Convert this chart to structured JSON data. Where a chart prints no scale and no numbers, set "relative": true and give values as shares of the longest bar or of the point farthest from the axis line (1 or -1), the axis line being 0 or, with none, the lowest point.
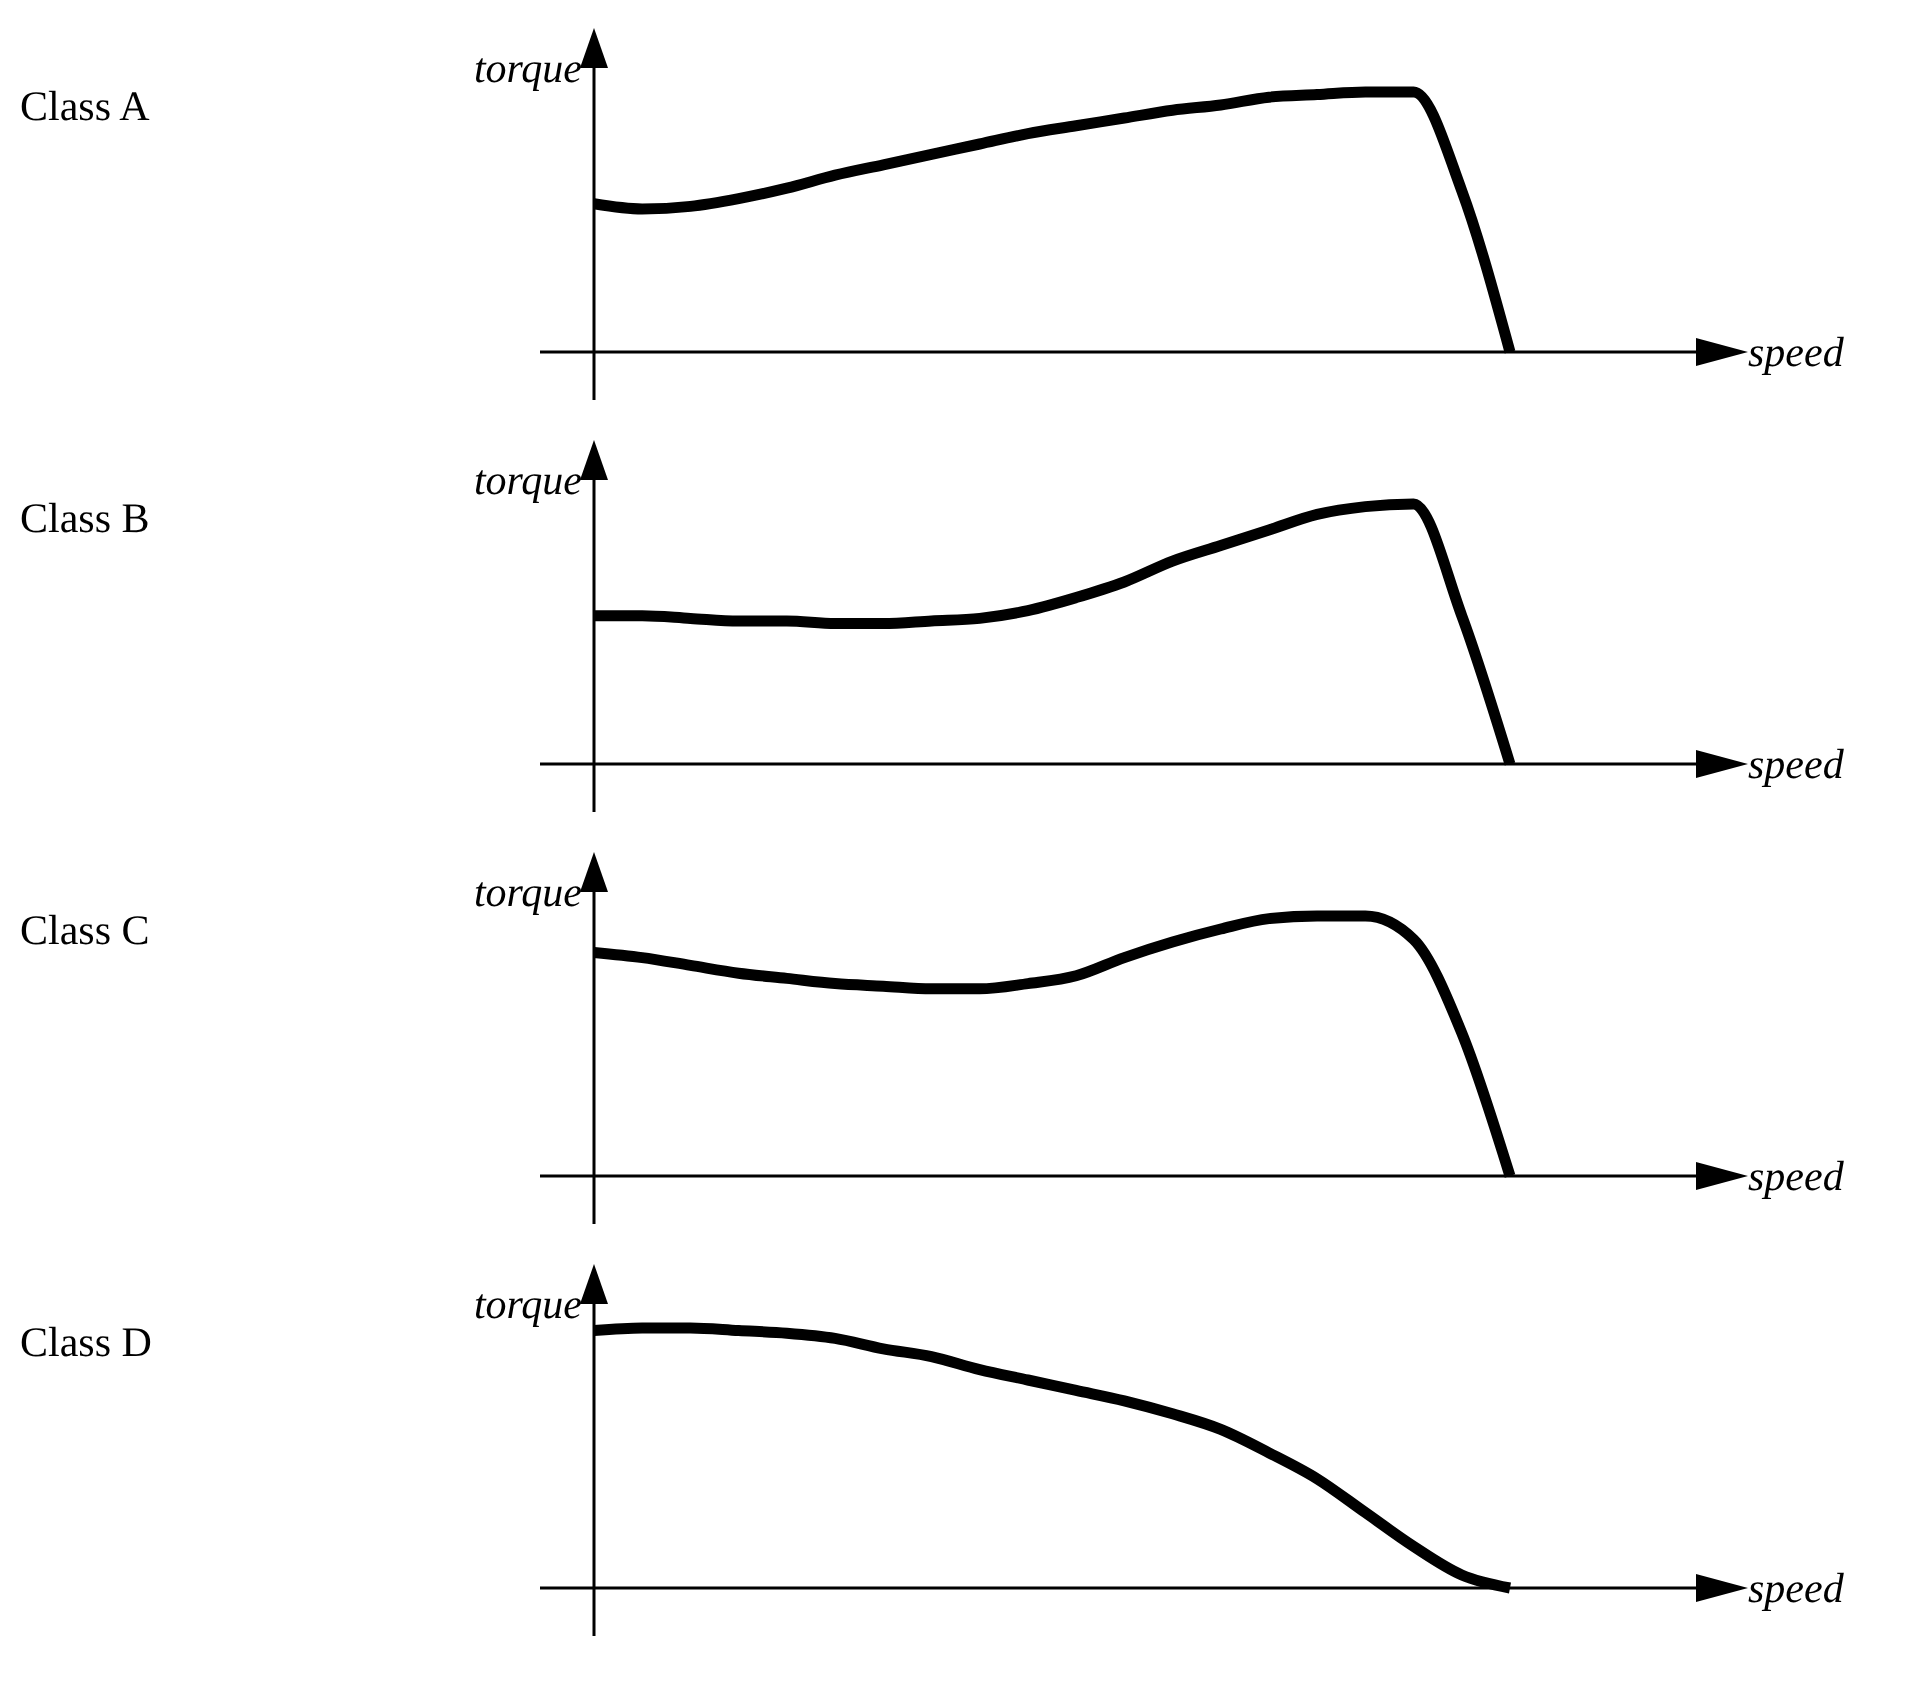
{
  "chart_data": [
    {
      "type": "line",
      "annotations": [
        "Class A"
      ],
      "xlabel": "speed",
      "ylabel": "torque",
      "relative": true,
      "categories": [
        null,
        null,
        null,
        null,
        null,
        null,
        null,
        null,
        null,
        null,
        null,
        null,
        null,
        null,
        null,
        null,
        null,
        null,
        null,
        null
      ],
      "series": [
        {
          "color": "#000000",
          "values": [
            0.57,
            0.55,
            0.56,
            0.59,
            0.63,
            0.68,
            0.72,
            0.76,
            0.8,
            0.84,
            0.87,
            0.9,
            0.93,
            0.95,
            0.98,
            0.99,
            1,
            1,
            0.62,
            0
          ]
        }
      ]
    },
    {
      "type": "line",
      "annotations": [
        "Class B"
      ],
      "xlabel": "speed",
      "ylabel": "torque",
      "relative": true,
      "categories": [
        null,
        null,
        null,
        null,
        null,
        null,
        null,
        null,
        null,
        null,
        null,
        null,
        null,
        null,
        null,
        null,
        null,
        null,
        null,
        null
      ],
      "series": [
        {
          "color": "#000000",
          "values": [
            0.57,
            0.57,
            0.56,
            0.55,
            0.55,
            0.54,
            0.54,
            0.55,
            0.56,
            0.59,
            0.64,
            0.7,
            0.78,
            0.84,
            0.9,
            0.96,
            0.99,
            1,
            0.57,
            0
          ]
        }
      ]
    },
    {
      "type": "line",
      "annotations": [
        "Class C"
      ],
      "xlabel": "speed",
      "ylabel": "torque",
      "relative": true,
      "categories": [
        null,
        null,
        null,
        null,
        null,
        null,
        null,
        null,
        null,
        null,
        null,
        null,
        null,
        null,
        null,
        null,
        null,
        null,
        null,
        null
      ],
      "series": [
        {
          "color": "#000000",
          "values": [
            0.86,
            0.84,
            0.81,
            0.78,
            0.76,
            0.74,
            0.73,
            0.72,
            0.72,
            0.74,
            0.77,
            0.84,
            0.9,
            0.95,
            0.99,
            1,
            1,
            0.91,
            0.55,
            0
          ]
        }
      ]
    },
    {
      "type": "line",
      "annotations": [
        "Class D"
      ],
      "xlabel": "speed",
      "ylabel": "torque",
      "relative": true,
      "categories": [
        null,
        null,
        null,
        null,
        null,
        null,
        null,
        null,
        null,
        null,
        null,
        null,
        null,
        null,
        null,
        null,
        null,
        null,
        null,
        null
      ],
      "series": [
        {
          "color": "#000000",
          "values": [
            0.99,
            1,
            1,
            0.99,
            0.98,
            0.96,
            0.92,
            0.89,
            0.84,
            0.8,
            0.76,
            0.72,
            0.67,
            0.61,
            0.52,
            0.42,
            0.29,
            0.16,
            0.05,
            0
          ]
        }
      ]
    }
  ]
}
